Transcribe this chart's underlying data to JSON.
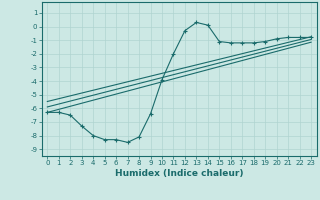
{
  "xlabel": "Humidex (Indice chaleur)",
  "bg_color": "#cce8e4",
  "grid_color": "#b0d4d0",
  "line_color": "#1a6b6b",
  "xlim": [
    -0.5,
    23.5
  ],
  "ylim": [
    -9.5,
    1.8
  ],
  "xticks": [
    0,
    1,
    2,
    3,
    4,
    5,
    6,
    7,
    8,
    9,
    10,
    11,
    12,
    13,
    14,
    15,
    16,
    17,
    18,
    19,
    20,
    21,
    22,
    23
  ],
  "yticks": [
    1,
    0,
    -1,
    -2,
    -3,
    -4,
    -5,
    -6,
    -7,
    -8,
    -9
  ],
  "curve1_x": [
    0,
    1,
    2,
    3,
    4,
    5,
    6,
    7,
    8,
    9,
    10,
    11,
    12,
    13,
    14,
    15,
    16,
    17,
    18,
    19,
    20,
    21,
    22,
    23
  ],
  "curve1_y": [
    -6.3,
    -6.3,
    -6.5,
    -7.3,
    -8.0,
    -8.3,
    -8.3,
    -8.5,
    -8.1,
    -6.4,
    -3.9,
    -2.0,
    -0.3,
    0.3,
    0.1,
    -1.1,
    -1.2,
    -1.2,
    -1.2,
    -1.1,
    -0.9,
    -0.8,
    -0.8,
    -0.8
  ],
  "curve2_x": [
    0,
    23
  ],
  "curve2_y": [
    -5.5,
    -0.75
  ],
  "curve3_x": [
    0,
    23
  ],
  "curve3_y": [
    -5.9,
    -0.95
  ],
  "curve4_x": [
    0,
    23
  ],
  "curve4_y": [
    -6.3,
    -1.15
  ]
}
